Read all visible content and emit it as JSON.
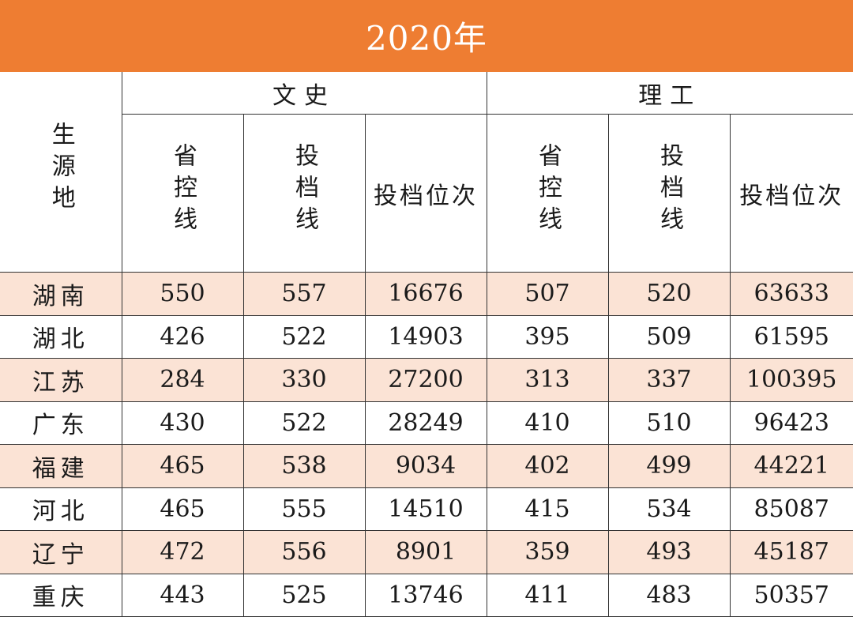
{
  "title": "2020年",
  "header": {
    "origin": "生源地",
    "groups": [
      "文史",
      "理工"
    ],
    "sub_columns": [
      "省控线",
      "投档线",
      "投档位次"
    ]
  },
  "rows": [
    {
      "region": "湖南",
      "wenshi": [
        "550",
        "557",
        "16676"
      ],
      "ligong": [
        "507",
        "520",
        "63633"
      ]
    },
    {
      "region": "湖北",
      "wenshi": [
        "426",
        "522",
        "14903"
      ],
      "ligong": [
        "395",
        "509",
        "61595"
      ]
    },
    {
      "region": "江苏",
      "wenshi": [
        "284",
        "330",
        "27200"
      ],
      "ligong": [
        "313",
        "337",
        "100395"
      ]
    },
    {
      "region": "广东",
      "wenshi": [
        "430",
        "522",
        "28249"
      ],
      "ligong": [
        "410",
        "510",
        "96423"
      ]
    },
    {
      "region": "福建",
      "wenshi": [
        "465",
        "538",
        "9034"
      ],
      "ligong": [
        "402",
        "499",
        "44221"
      ]
    },
    {
      "region": "河北",
      "wenshi": [
        "465",
        "555",
        "14510"
      ],
      "ligong": [
        "415",
        "534",
        "85087"
      ]
    },
    {
      "region": "辽宁",
      "wenshi": [
        "472",
        "556",
        "8901"
      ],
      "ligong": [
        "359",
        "493",
        "45187"
      ]
    },
    {
      "region": "重庆",
      "wenshi": [
        "443",
        "525",
        "13746"
      ],
      "ligong": [
        "411",
        "483",
        "50357"
      ]
    }
  ],
  "colors": {
    "title_bg": "#ee7d32",
    "row_shade": "#fbe3d5"
  }
}
